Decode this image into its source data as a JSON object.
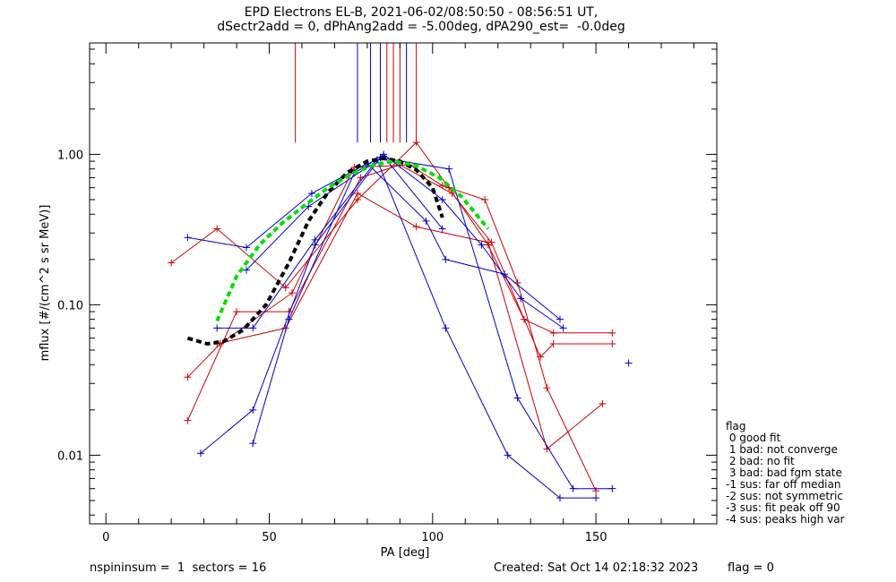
{
  "header": {
    "title_line1": "EPD Electrons EL-B, 2021-06-02/08:50:50 - 08:56:51 UT,",
    "title_line2": "dSectr2add = 0, dPhAng2add = -5.00deg, dPA290_est=  -0.0deg"
  },
  "footer": {
    "left": "nspininsum =  1  sectors = 16",
    "created": "Created: Sat Oct 14 02:18:32 2023",
    "flag": "flag = 0"
  },
  "legend": {
    "title": "flag",
    "items": [
      " 0 good fit",
      " 1 bad: not converge",
      " 2 bad: no fit",
      " 3 bad: bad fgm state",
      "-1 sus: far off median",
      "-2 sus: not symmetric",
      "-3 sus: fit peak off 90",
      "-4 sus: peaks high var"
    ]
  },
  "colors": {
    "red": "#cc0000",
    "blue": "#0000cc",
    "green": "#00e000",
    "black": "#000000"
  },
  "chart_data": {
    "type": "line",
    "xlabel": "PA [deg]",
    "ylabel": "mflux [#/(cm^2 s sr MeV)]",
    "xlim": [
      -5,
      187
    ],
    "ylim": [
      0.0035,
      5.5
    ],
    "yscale": "log",
    "xticks": [
      0,
      50,
      100,
      150
    ],
    "xtick_labels": [
      "0",
      "50",
      "100",
      "150"
    ],
    "yticks": [
      0.01,
      0.1,
      1.0
    ],
    "ytick_labels": [
      "0.01",
      "0.10",
      "1.00"
    ],
    "vertical_lines": [
      {
        "x": 58,
        "color": "red"
      },
      {
        "x": 77,
        "color": "blue"
      },
      {
        "x": 81,
        "color": "blue"
      },
      {
        "x": 84,
        "color": "blue"
      },
      {
        "x": 86,
        "color": "red"
      },
      {
        "x": 88,
        "color": "red"
      },
      {
        "x": 90,
        "color": "red"
      },
      {
        "x": 92,
        "color": "blue"
      },
      {
        "x": 95,
        "color": "red"
      }
    ],
    "series": [
      {
        "color": "red",
        "points": [
          [
            20,
            0.19
          ],
          [
            34,
            0.32
          ],
          [
            55,
            0.13
          ],
          [
            77,
            0.5
          ],
          [
            95,
            1.2
          ],
          [
            105,
            0.6
          ],
          [
            117,
            0.25
          ],
          [
            128,
            0.08
          ],
          [
            137,
            0.065
          ],
          [
            155,
            0.065
          ]
        ]
      },
      {
        "color": "red",
        "points": [
          [
            25,
            0.033
          ],
          [
            35,
            0.055
          ],
          [
            57,
            0.12
          ],
          [
            76,
            0.82
          ],
          [
            93,
            0.85
          ],
          [
            103,
            0.62
          ],
          [
            116,
            0.5
          ],
          [
            126,
            0.14
          ],
          [
            135,
            0.028
          ],
          [
            150,
            0.0058
          ]
        ]
      },
      {
        "color": "red",
        "points": [
          [
            25,
            0.017
          ],
          [
            40,
            0.09
          ],
          [
            56,
            0.09
          ],
          [
            78,
            0.7
          ],
          [
            90,
            0.85
          ],
          [
            106,
            0.55
          ],
          [
            118,
            0.26
          ],
          [
            133,
            0.045
          ],
          [
            137,
            0.055
          ],
          [
            155,
            0.055
          ]
        ]
      },
      {
        "color": "red",
        "points": [
          [
            34,
            0.055
          ],
          [
            55,
            0.07
          ],
          [
            77,
            0.55
          ],
          [
            95,
            0.33
          ],
          [
            117,
            0.26
          ],
          [
            135,
            0.011
          ],
          [
            152,
            0.022
          ]
        ]
      },
      {
        "color": "blue",
        "points": [
          [
            25,
            0.28
          ],
          [
            43,
            0.24
          ],
          [
            63,
            0.55
          ],
          [
            80,
            0.87
          ],
          [
            98,
            0.36
          ],
          [
            104,
            0.2
          ],
          [
            122,
            0.16
          ],
          [
            139,
            0.08
          ]
        ]
      },
      {
        "color": "blue",
        "points": [
          [
            34,
            0.07
          ],
          [
            45,
            0.07
          ],
          [
            64,
            0.27
          ],
          [
            83,
            0.92
          ],
          [
            104,
            0.07
          ],
          [
            123,
            0.01
          ],
          [
            139,
            0.0052
          ],
          [
            150,
            0.0052
          ]
        ]
      },
      {
        "color": "blue",
        "points": [
          [
            29,
            0.0103
          ],
          [
            45,
            0.02
          ],
          [
            64,
            0.25
          ],
          [
            84,
            0.95
          ],
          [
            105,
            0.8
          ],
          [
            126,
            0.024
          ],
          [
            143,
            0.006
          ],
          [
            155,
            0.006
          ]
        ]
      },
      {
        "color": "blue",
        "points": [
          [
            45,
            0.012
          ],
          [
            56,
            0.08
          ],
          [
            76,
            0.75
          ],
          [
            85,
            1.0
          ],
          [
            103,
            0.5
          ],
          [
            115,
            0.25
          ],
          [
            127,
            0.11
          ],
          [
            140,
            0.07
          ]
        ]
      },
      {
        "color": "blue",
        "points": [
          [
            43,
            0.17
          ],
          [
            62,
            0.45
          ],
          [
            85,
            0.97
          ],
          [
            103,
            0.32
          ]
        ]
      },
      {
        "color": "blue",
        "points": [
          [
            160,
            0.041
          ]
        ]
      }
    ],
    "fits": [
      {
        "color": "black",
        "style": "dashed",
        "points": [
          [
            25,
            0.06
          ],
          [
            31,
            0.055
          ],
          [
            36,
            0.057
          ],
          [
            42,
            0.068
          ],
          [
            49,
            0.1
          ],
          [
            56,
            0.19
          ],
          [
            62,
            0.36
          ],
          [
            68,
            0.56
          ],
          [
            74,
            0.76
          ],
          [
            80,
            0.9
          ],
          [
            85,
            0.94
          ],
          [
            90,
            0.9
          ],
          [
            95,
            0.79
          ],
          [
            100,
            0.6
          ],
          [
            103,
            0.38
          ]
        ]
      },
      {
        "color": "green",
        "style": "dashed",
        "points": [
          [
            34,
            0.078
          ],
          [
            40,
            0.155
          ],
          [
            47,
            0.25
          ],
          [
            54,
            0.35
          ],
          [
            61,
            0.46
          ],
          [
            68,
            0.6
          ],
          [
            75,
            0.74
          ],
          [
            82,
            0.85
          ],
          [
            88,
            0.9
          ],
          [
            95,
            0.84
          ],
          [
            102,
            0.7
          ],
          [
            109,
            0.52
          ],
          [
            117,
            0.32
          ]
        ]
      }
    ]
  }
}
